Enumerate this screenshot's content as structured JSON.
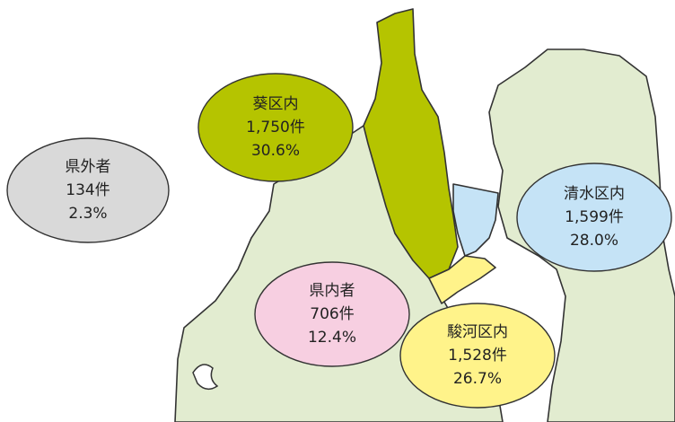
{
  "regions": [
    {
      "name": "県外者",
      "count": "134件",
      "share": "2.3%"
    },
    {
      "name": "葵区内",
      "count": "1,750件",
      "share": "30.6%"
    },
    {
      "name": "清水区内",
      "count": "1,599件",
      "share": "28.0%"
    },
    {
      "name": "県内者",
      "count": "706件",
      "share": "12.4%"
    },
    {
      "name": "駿河区内",
      "count": "1,528件",
      "share": "26.7%"
    }
  ]
}
